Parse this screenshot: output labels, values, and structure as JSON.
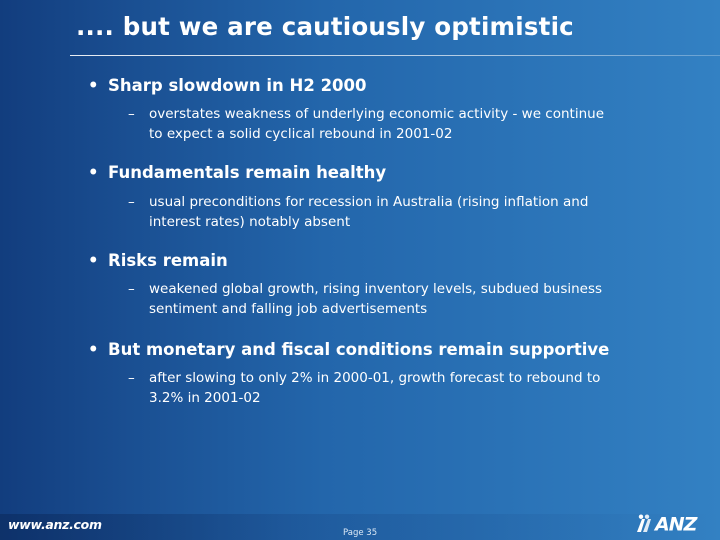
{
  "slide": {
    "title": ".... but we are cautiously optimistic",
    "bullets": [
      {
        "marker": "•",
        "heading": "Sharp slowdown in H2 2000",
        "sub_marker": "–",
        "sub_lines": [
          "overstates weakness of underlying economic activity -  we continue",
          "to expect a solid cyclical rebound in 2001-02"
        ]
      },
      {
        "marker": "•",
        "heading": "Fundamentals remain healthy",
        "sub_marker": "–",
        "sub_lines": [
          "usual preconditions for recession in Australia (rising inflation and",
          "interest rates) notably absent"
        ]
      },
      {
        "marker": "•",
        "heading": "Risks remain",
        "sub_marker": "–",
        "sub_lines": [
          "weakened global growth, rising inventory levels, subdued business",
          "sentiment and falling job advertisements"
        ]
      },
      {
        "marker": "•",
        "heading": "But monetary and fiscal conditions remain supportive",
        "sub_marker": "–",
        "sub_lines": [
          "after slowing to only 2% in 2000-01, growth forecast to rebound to",
          "3.2% in 2001-02"
        ]
      }
    ]
  },
  "footer": {
    "website": "www.anz.com",
    "ghost_text": "",
    "page_label": "Page 35",
    "logo_text": "ANZ"
  },
  "colors": {
    "background_dark": "#123d7e",
    "background_light": "#3381c3",
    "text": "#ffffff"
  }
}
